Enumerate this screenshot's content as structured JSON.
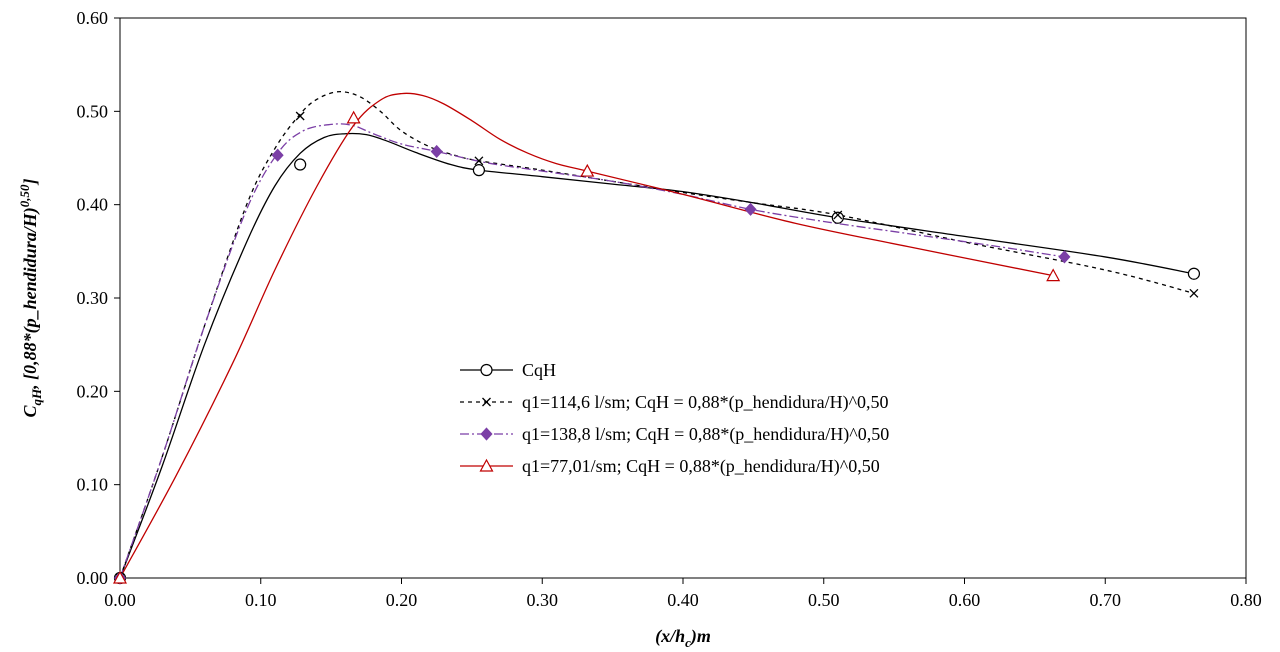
{
  "chart_data": {
    "type": "line",
    "xlabel": {
      "main": "(x/h",
      "sub": "c",
      "tail": ")m"
    },
    "ylabel": {
      "main": "C",
      "sub": "qH",
      "mid": ",  [0,88*(p_hendidura/H)",
      "sup": "0,50",
      "tail": "]"
    },
    "xlim": [
      0,
      0.8
    ],
    "ylim": [
      0,
      0.6
    ],
    "xticks": [
      0,
      0.1,
      0.2,
      0.3,
      0.4,
      0.5,
      0.6,
      0.7,
      0.8
    ],
    "yticks": [
      0,
      0.1,
      0.2,
      0.3,
      0.4,
      0.5,
      0.6
    ],
    "xtick_labels": [
      "0.00",
      "0.10",
      "0.20",
      "0.30",
      "0.40",
      "0.50",
      "0.60",
      "0.70",
      "0.80"
    ],
    "ytick_labels": [
      "0.00",
      "0.10",
      "0.20",
      "0.30",
      "0.40",
      "0.50",
      "0.60"
    ],
    "grid": false,
    "legend_position": "center",
    "series": [
      {
        "name": "CqH",
        "color": "#000000",
        "dash": "solid",
        "marker": "circle-open",
        "x": [
          0,
          0.128,
          0.255,
          0.51,
          0.763
        ],
        "y": [
          0,
          0.443,
          0.437,
          0.386,
          0.326
        ],
        "curve_x": [
          0,
          0.03,
          0.06,
          0.09,
          0.11,
          0.128,
          0.145,
          0.16,
          0.175,
          0.19,
          0.21,
          0.235,
          0.255,
          0.3,
          0.35,
          0.4,
          0.45,
          0.51,
          0.6,
          0.7,
          0.763
        ],
        "curve_y": [
          0,
          0.12,
          0.25,
          0.36,
          0.42,
          0.455,
          0.472,
          0.476,
          0.475,
          0.468,
          0.456,
          0.443,
          0.437,
          0.43,
          0.422,
          0.414,
          0.402,
          0.386,
          0.366,
          0.344,
          0.326
        ]
      },
      {
        "name": "q1=114,6 l/sm; CqH = 0,88*(p_hendidura/H)^0,50",
        "color": "#000000",
        "dash": "4,4",
        "marker": "x",
        "x": [
          0,
          0.128,
          0.255,
          0.51,
          0.763
        ],
        "y": [
          0,
          0.495,
          0.447,
          0.389,
          0.305
        ],
        "curve_x": [
          0,
          0.03,
          0.06,
          0.09,
          0.11,
          0.128,
          0.14,
          0.155,
          0.17,
          0.185,
          0.2,
          0.22,
          0.24,
          0.255,
          0.3,
          0.35,
          0.4,
          0.45,
          0.51,
          0.6,
          0.7,
          0.763
        ],
        "curve_y": [
          0,
          0.13,
          0.27,
          0.4,
          0.46,
          0.497,
          0.513,
          0.521,
          0.516,
          0.5,
          0.479,
          0.462,
          0.452,
          0.447,
          0.437,
          0.425,
          0.413,
          0.402,
          0.389,
          0.36,
          0.33,
          0.305
        ]
      },
      {
        "name": "q1=138,8 l/sm; CqH = 0,88*(p_hendidura/H)^0,50",
        "color": "#7b3fa6",
        "dash": "9,3,2,3",
        "marker": "diamond",
        "x": [
          0,
          0.112,
          0.225,
          0.448,
          0.671
        ],
        "y": [
          0,
          0.453,
          0.457,
          0.395,
          0.344
        ],
        "curve_x": [
          0,
          0.03,
          0.06,
          0.09,
          0.112,
          0.13,
          0.15,
          0.165,
          0.18,
          0.2,
          0.225,
          0.26,
          0.3,
          0.35,
          0.4,
          0.448,
          0.5,
          0.56,
          0.62,
          0.671
        ],
        "curve_y": [
          0,
          0.13,
          0.27,
          0.395,
          0.455,
          0.479,
          0.486,
          0.485,
          0.476,
          0.465,
          0.457,
          0.445,
          0.436,
          0.425,
          0.411,
          0.395,
          0.382,
          0.369,
          0.356,
          0.344
        ]
      },
      {
        "name": "q1=77,01/sm; CqH = 0,88*(p_hendidura/H)^0,50",
        "color": "#c00000",
        "dash": "solid",
        "marker": "triangle-open",
        "x": [
          0,
          0.166,
          0.332,
          0.663
        ],
        "y": [
          0,
          0.493,
          0.436,
          0.324
        ],
        "curve_x": [
          0,
          0.04,
          0.08,
          0.11,
          0.14,
          0.166,
          0.185,
          0.2,
          0.215,
          0.23,
          0.25,
          0.27,
          0.29,
          0.31,
          0.332,
          0.4,
          0.48,
          0.56,
          0.663
        ],
        "curve_y": [
          0,
          0.11,
          0.23,
          0.33,
          0.42,
          0.485,
          0.512,
          0.519,
          0.517,
          0.508,
          0.49,
          0.47,
          0.455,
          0.444,
          0.436,
          0.411,
          0.38,
          0.355,
          0.324
        ]
      }
    ]
  }
}
